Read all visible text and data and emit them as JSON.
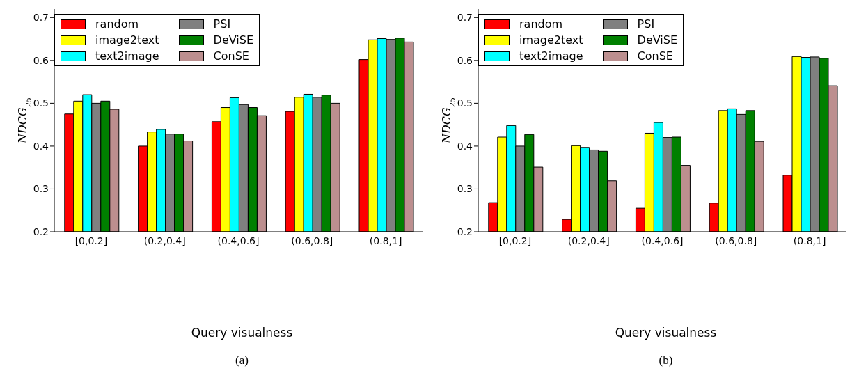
{
  "chart_data": [
    {
      "type": "bar",
      "categories": [
        "[0,0.2]",
        "(0.2,0.4]",
        "(0.4,0.6]",
        "(0.6,0.8]",
        "(0.8,1]"
      ],
      "xlabel": "Query visualness",
      "ylabel": "NDCG$_{25}$",
      "ylim": [
        0.2,
        0.72
      ],
      "yticks": [
        0.2,
        0.3,
        0.4,
        0.5,
        0.6,
        0.7
      ],
      "grid": false,
      "legend": "top left",
      "annotations": [
        "(a)"
      ],
      "series": [
        {
          "name": "random",
          "color": "#ff0000",
          "values": [
            0.475,
            0.4,
            0.457,
            0.481,
            0.602
          ]
        },
        {
          "name": "image2text",
          "color": "#ffff00",
          "values": [
            0.505,
            0.433,
            0.49,
            0.514,
            0.648
          ]
        },
        {
          "name": "text2image",
          "color": "#00ffff",
          "values": [
            0.52,
            0.439,
            0.513,
            0.521,
            0.651
          ]
        },
        {
          "name": "PSI",
          "color": "#808080",
          "values": [
            0.5,
            0.428,
            0.497,
            0.514,
            0.649
          ]
        },
        {
          "name": "DeViSE",
          "color": "#008000",
          "values": [
            0.505,
            0.428,
            0.49,
            0.519,
            0.652
          ]
        },
        {
          "name": "ConSE",
          "color": "#bc8f8f",
          "values": [
            0.486,
            0.412,
            0.471,
            0.5,
            0.643
          ]
        }
      ]
    },
    {
      "type": "bar",
      "categories": [
        "[0,0.2]",
        "(0.2,0.4]",
        "(0.4,0.6]",
        "(0.6,0.8]",
        "(0.8,1]"
      ],
      "xlabel": "Query visualness",
      "ylabel": "NDCG$_{25}$",
      "ylim": [
        0.2,
        0.72
      ],
      "yticks": [
        0.2,
        0.3,
        0.4,
        0.5,
        0.6,
        0.7
      ],
      "grid": false,
      "legend": "top left",
      "annotations": [
        "(b)"
      ],
      "series": [
        {
          "name": "random",
          "color": "#ff0000",
          "values": [
            0.268,
            0.229,
            0.255,
            0.267,
            0.332
          ]
        },
        {
          "name": "image2text",
          "color": "#ffff00",
          "values": [
            0.421,
            0.401,
            0.43,
            0.483,
            0.609
          ]
        },
        {
          "name": "text2image",
          "color": "#00ffff",
          "values": [
            0.448,
            0.397,
            0.455,
            0.487,
            0.607
          ]
        },
        {
          "name": "PSI",
          "color": "#808080",
          "values": [
            0.4,
            0.391,
            0.42,
            0.474,
            0.608
          ]
        },
        {
          "name": "DeViSE",
          "color": "#008000",
          "values": [
            0.427,
            0.388,
            0.421,
            0.483,
            0.605
          ]
        },
        {
          "name": "ConSE",
          "color": "#bc8f8f",
          "values": [
            0.351,
            0.319,
            0.355,
            0.411,
            0.541
          ]
        }
      ]
    }
  ]
}
